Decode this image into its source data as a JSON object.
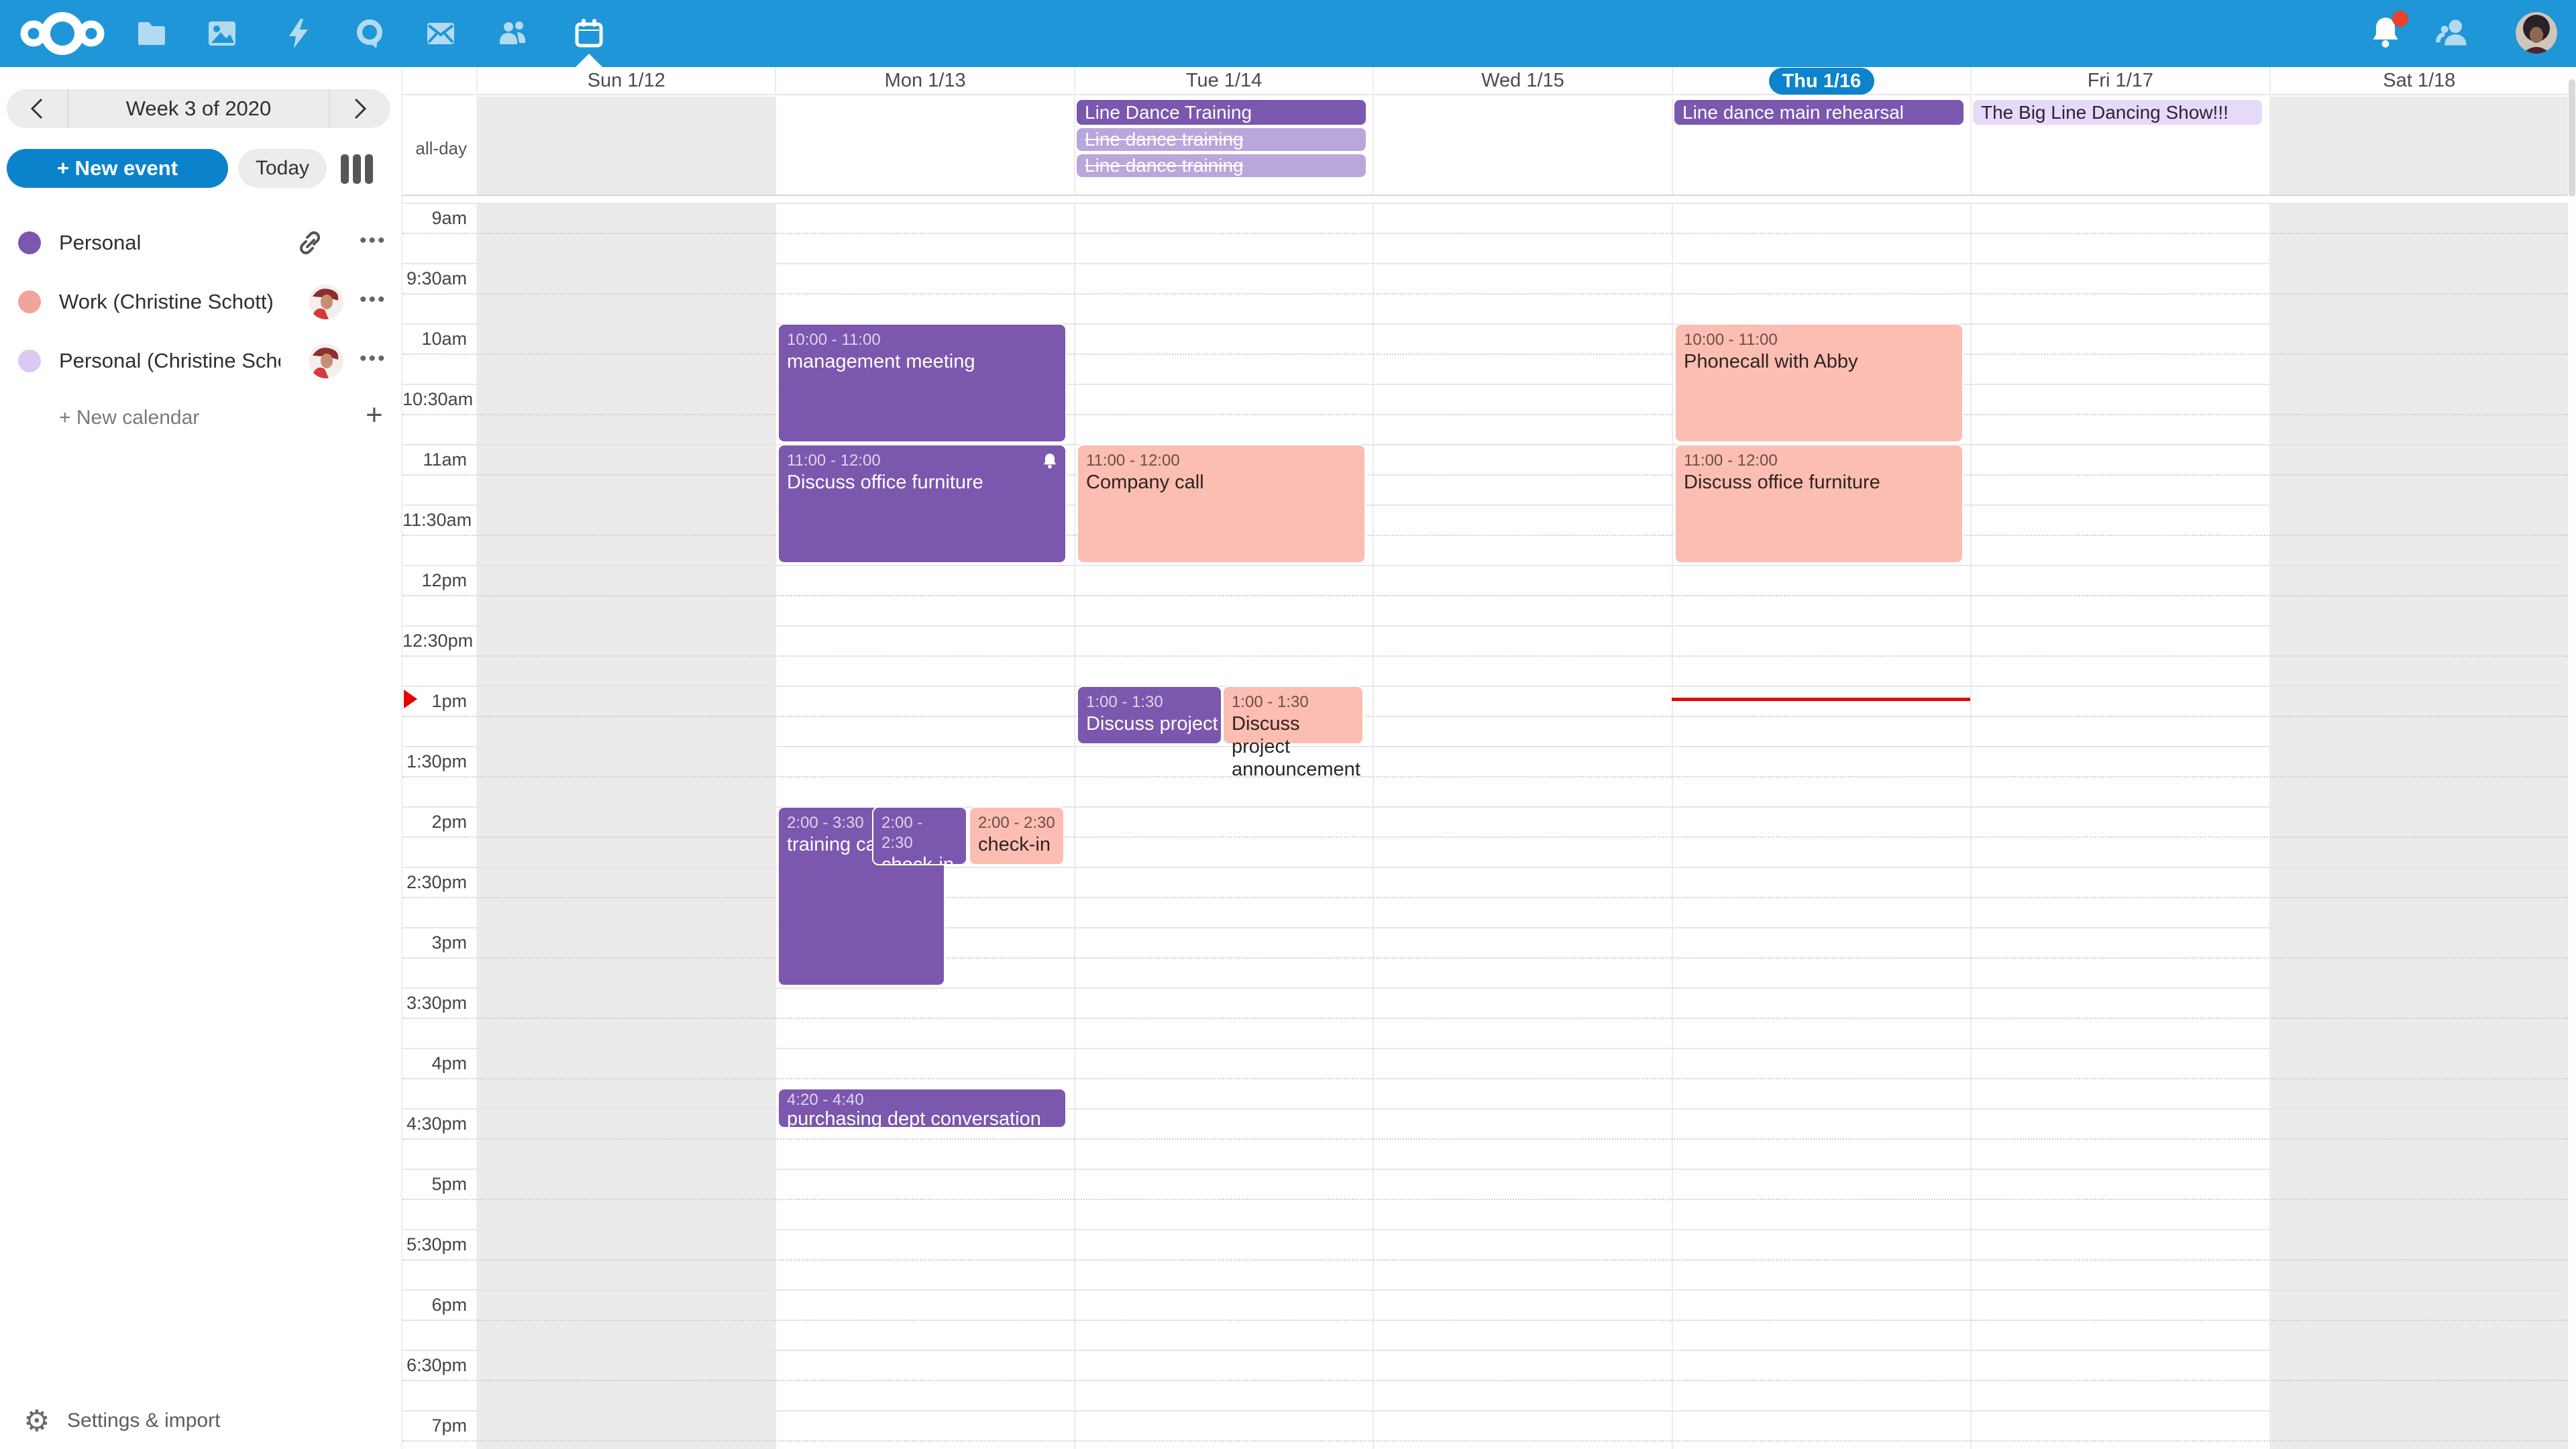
{
  "topbar": {
    "apps": [
      "files",
      "photos",
      "activity",
      "talk",
      "mail",
      "contacts",
      "calendar"
    ],
    "active_app": "calendar",
    "has_notification_badge": true
  },
  "sidebar": {
    "week_nav": {
      "label": "Week 3 of 2020"
    },
    "new_event_label": "+ New event",
    "today_label": "Today",
    "calendars": [
      {
        "name": "Personal",
        "color": "#7b57ae",
        "has_share_link": true,
        "menu": "•••"
      },
      {
        "name": "Work (Christine Schott)",
        "color": "#f0a49b",
        "has_avatar": true,
        "menu": "•••"
      },
      {
        "name": "Personal (Christine Scho…",
        "color": "#dcc8f4",
        "has_avatar": true,
        "menu": "•••"
      }
    ],
    "new_calendar_label": "+ New calendar",
    "new_calendar_plus": "+",
    "settings_label": "Settings & import",
    "gear_glyph": "⚙"
  },
  "calendar": {
    "allday_label": "all-day",
    "day_headers": [
      {
        "label": "Sun 1/12",
        "weekend": true,
        "today": false
      },
      {
        "label": "Mon 1/13",
        "weekend": false,
        "today": false
      },
      {
        "label": "Tue 1/14",
        "weekend": false,
        "today": false
      },
      {
        "label": "Wed 1/15",
        "weekend": false,
        "today": false
      },
      {
        "label": "Thu 1/16",
        "weekend": false,
        "today": true
      },
      {
        "label": "Fri 1/17",
        "weekend": false,
        "today": false
      },
      {
        "label": "Sat 1/18",
        "weekend": true,
        "today": false
      }
    ],
    "time_labels": [
      "9am",
      "9:30am",
      "10am",
      "10:30am",
      "11am",
      "11:30am",
      "12pm",
      "12:30pm",
      "1pm",
      "1:30pm",
      "2pm",
      "2:30pm",
      "3pm",
      "3:30pm",
      "4pm",
      "4:30pm",
      "5pm",
      "5:30pm",
      "6pm",
      "6:30pm",
      "7pm"
    ],
    "allday_events": [
      {
        "day": "Tue 1/14",
        "title": "Line Dance Training",
        "style": "solid-purple",
        "cancelled": false
      },
      {
        "day": "Tue 1/14",
        "title": "Line dance training",
        "style": "light-purple",
        "cancelled": true
      },
      {
        "day": "Tue 1/14",
        "title": "Line dance training",
        "style": "light-purple",
        "cancelled": true
      },
      {
        "day": "Thu 1/16",
        "title": "Line dance main rehearsal",
        "style": "solid-purple",
        "cancelled": false
      },
      {
        "day": "Fri 1/17",
        "title": "The Big Line Dancing Show!!!",
        "style": "lavender",
        "cancelled": false
      }
    ],
    "events": [
      {
        "day": "Mon 1/13",
        "time": "10:00 - 11:00",
        "title": "management meeting",
        "color": "purple",
        "alarm": false
      },
      {
        "day": "Mon 1/13",
        "time": "11:00 - 12:00",
        "title": "Discuss office furniture",
        "color": "purple",
        "alarm": true
      },
      {
        "day": "Tue 1/14",
        "time": "11:00 - 12:00",
        "title": "Company call",
        "color": "salmon",
        "alarm": false
      },
      {
        "day": "Tue 1/14",
        "time": "1:00 - 1:30",
        "title": "Discuss project announcement",
        "color": "purple",
        "alarm": false
      },
      {
        "day": "Tue 1/14",
        "time": "1:00 - 1:30",
        "title": "Discuss project announcement",
        "color": "salmon",
        "alarm": false
      },
      {
        "day": "Mon 1/13",
        "time": "2:00 - 3:30",
        "title": "training call",
        "color": "purple",
        "alarm": false
      },
      {
        "day": "Mon 1/13",
        "time": "2:00 - 2:30",
        "title": "check-in",
        "color": "purple",
        "alarm": false
      },
      {
        "day": "Mon 1/13",
        "time": "2:00 - 2:30",
        "title": "check-in",
        "color": "salmon",
        "alarm": false
      },
      {
        "day": "Mon 1/13",
        "time": "4:20 - 4:40",
        "title": "purchasing dept conversation",
        "color": "purple",
        "alarm": false
      },
      {
        "day": "Thu 1/16",
        "time": "10:00 - 11:00",
        "title": "Phonecall with Abby",
        "color": "salmon",
        "alarm": false
      },
      {
        "day": "Thu 1/16",
        "time": "11:00 - 12:00",
        "title": "Discuss office furniture",
        "color": "salmon",
        "alarm": false
      }
    ],
    "now_indicator_day": "Thu 1/16"
  },
  "colors": {
    "topbar": "#1f96d7",
    "primary_button": "#0b83ca",
    "event_purple": "#7b57ae",
    "event_light_purple": "#b9a6da",
    "event_salmon": "#fcbdb2",
    "event_lavender": "#e7daf8",
    "weekend_bg": "#ebebeb",
    "now_line": "#ea0202"
  }
}
